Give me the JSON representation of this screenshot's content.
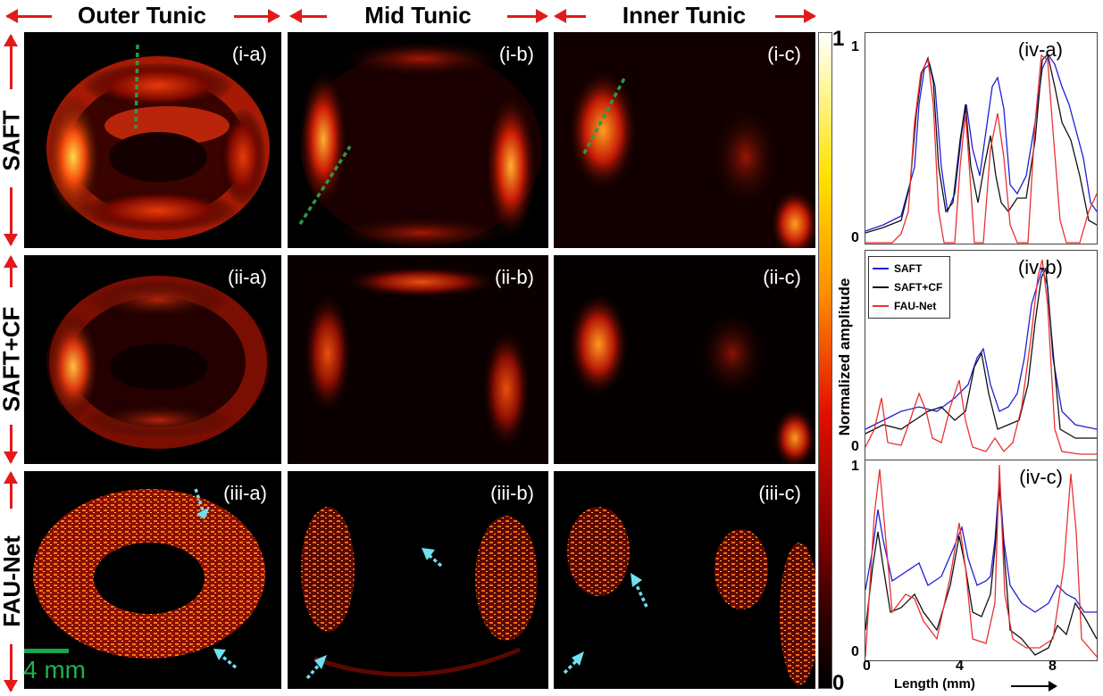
{
  "columns": [
    "Outer Tunic",
    "Mid Tunic",
    "Inner Tunic"
  ],
  "rows": [
    "SAFT",
    "SAFT+CF",
    "FAU-Net"
  ],
  "panel_labels": [
    [
      "(i-a)",
      "(i-b)",
      "(i-c)"
    ],
    [
      "(ii-a)",
      "(ii-b)",
      "(ii-c)"
    ],
    [
      "(iii-a)",
      "(iii-b)",
      "(iii-c)"
    ]
  ],
  "colorbar": {
    "max_label": "1",
    "min_label": "0",
    "title": "Normalized amplitude"
  },
  "plots": {
    "labels": [
      "(iv-a)",
      "(iv-b)",
      "(iv-c)"
    ],
    "y_max_label": "1",
    "y_min_label": "0",
    "x_ticks": [
      "0",
      "4",
      "8"
    ],
    "x_label": "Length (mm)",
    "legend": [
      {
        "name": "SAFT",
        "color": "#1f1fd6"
      },
      {
        "name": "SAFT+CF",
        "color": "#111111"
      },
      {
        "name": "FAU-Net",
        "color": "#e83232"
      }
    ]
  },
  "scale_bar": {
    "label": "4 mm",
    "color": "#22b04b"
  },
  "colors": {
    "arrow": "#e21a1a",
    "profile_line": "#2a9a4a",
    "pointer": "#6fe0f0"
  }
}
